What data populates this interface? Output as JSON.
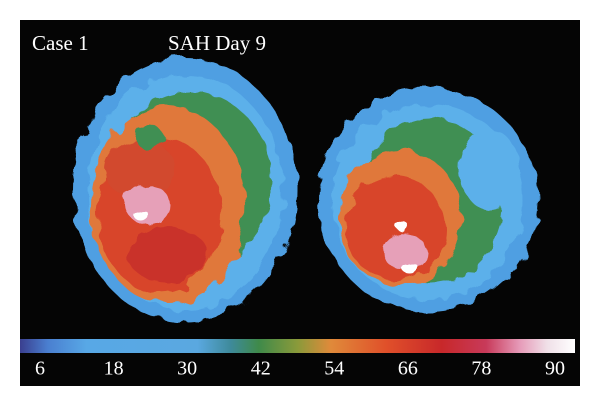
{
  "labels": {
    "case": "Case 1",
    "condition": "SAH Day 9"
  },
  "colorbar": {
    "ticks": [
      6,
      18,
      30,
      42,
      54,
      66,
      78,
      90
    ]
  }
}
